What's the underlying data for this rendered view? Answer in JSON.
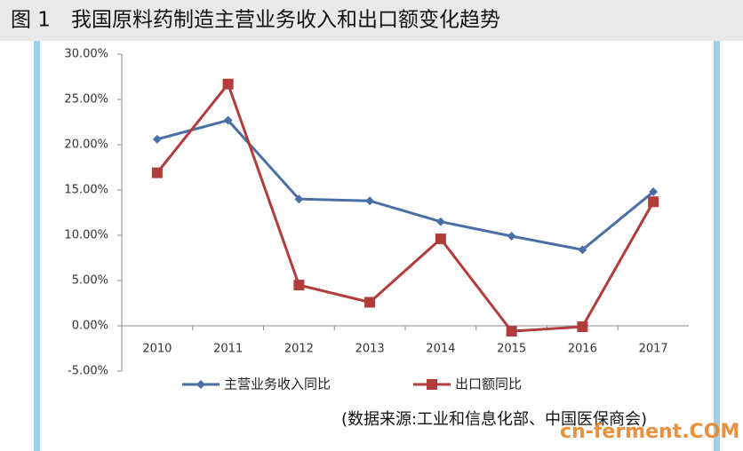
{
  "chart_data": {
    "type": "line",
    "title": "图 1　我国原料药制造主营业务收入和出口额变化趋势",
    "categories": [
      "2010",
      "2011",
      "2012",
      "2013",
      "2014",
      "2015",
      "2016",
      "2017"
    ],
    "series": [
      {
        "name": "主营业务收入同比",
        "color": "#4a6fa5",
        "marker": "diamond",
        "values": [
          20.6,
          22.7,
          14.0,
          13.8,
          11.5,
          9.9,
          8.4,
          14.8
        ]
      },
      {
        "name": "出口额同比",
        "color": "#b23b3b",
        "marker": "square",
        "values": [
          16.9,
          26.7,
          4.5,
          2.6,
          9.6,
          -0.6,
          -0.1,
          13.7
        ]
      }
    ],
    "ylim": [
      -5,
      30
    ],
    "yticks": [
      {
        "value": -5,
        "label": "-5.00%"
      },
      {
        "value": 0,
        "label": "0.00%"
      },
      {
        "value": 5,
        "label": "5.00%"
      },
      {
        "value": 10,
        "label": "10.00%"
      },
      {
        "value": 15,
        "label": "15.00%"
      },
      {
        "value": 20,
        "label": "20.00%"
      },
      {
        "value": 25,
        "label": "25.00%"
      },
      {
        "value": 30,
        "label": "30.00%"
      }
    ],
    "grid": false,
    "legend": "bottom",
    "source": "(数据来源:工业和信息化部、中国医保商会)",
    "watermark": "cn-ferment.COM"
  }
}
